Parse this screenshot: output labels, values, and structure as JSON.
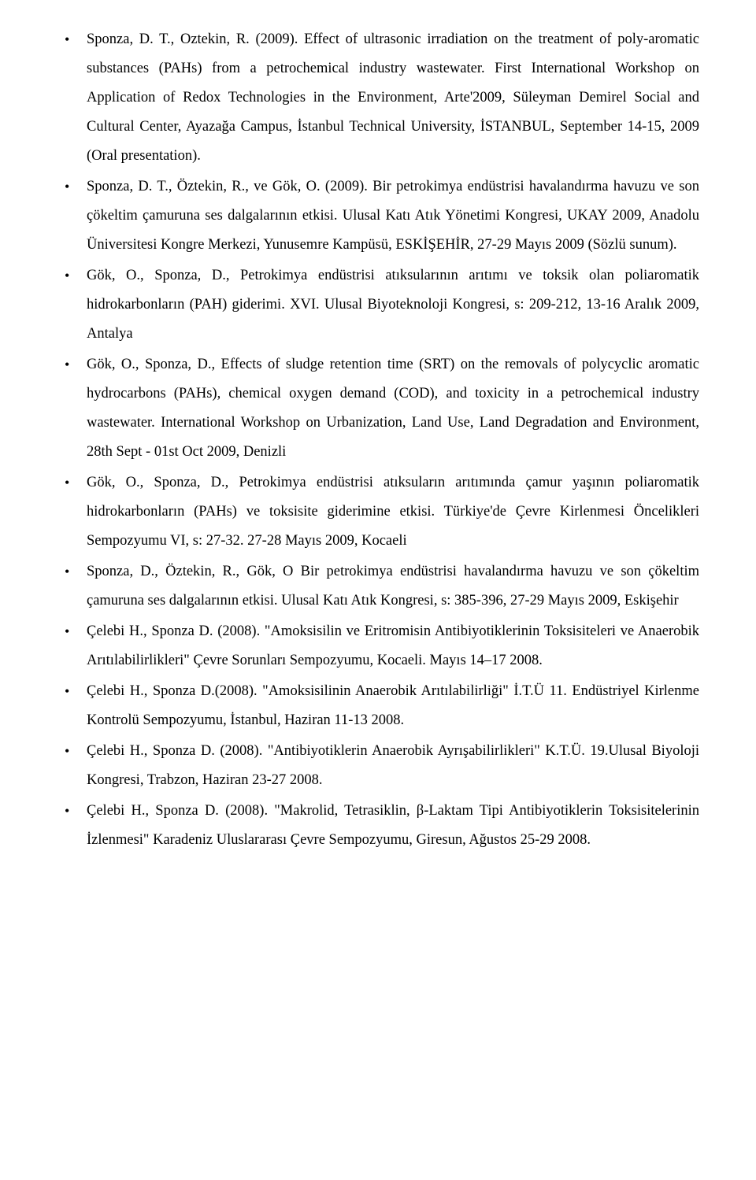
{
  "references": [
    "Sponza, D. T., Oztekin, R. (2009). Effect of ultrasonic irradiation on the treatment of poly-aromatic substances (PAHs) from a petrochemical industry wastewater. First International Workshop on Application of Redox Technologies in the Environment, Arte'2009, Süleyman Demirel Social and Cultural Center, Ayazağa Campus, İstanbul Technical University, İSTANBUL, September 14-15, 2009 (Oral presentation).",
    "Sponza, D. T., Öztekin, R., ve Gök, O. (2009). Bir petrokimya endüstrisi havalandırma havuzu ve son çökeltim çamuruna ses dalgalarının etkisi. Ulusal Katı Atık Yönetimi Kongresi, UKAY 2009, Anadolu Üniversitesi Kongre Merkezi, Yunusemre Kampüsü, ESKİŞEHİR, 27-29 Mayıs 2009 (Sözlü sunum).",
    "Gök, O., Sponza, D.,  Petrokimya endüstrisi atıksularının arıtımı ve toksik olan poliaromatik hidrokarbonların (PAH) giderimi. XVI. Ulusal Biyoteknoloji Kongresi, s: 209-212,  13-16 Aralık 2009, Antalya",
    "Gök, O.,  Sponza, D., Effects of sludge retention time (SRT) on the removals of polycyclic aromatic hydrocarbons (PAHs), chemical oxygen demand (COD), and toxicity in a petrochemical industry wastewater. International Workshop on Urbanization, Land Use, Land Degradation and Environment, 28th Sept - 01st Oct 2009, Denizli",
    "Gök, O., Sponza, D.,  Petrokimya endüstrisi atıksuların arıtımında çamur yaşının poliaromatik hidrokarbonların (PAHs) ve toksisite giderimine etkisi. Türkiye'de Çevre Kirlenmesi Öncelikleri Sempozyumu VI, s: 27-32. 27-28 Mayıs 2009, Kocaeli",
    "Sponza, D., Öztekin, R., Gök, O Bir petrokimya endüstrisi havalandırma havuzu ve son çökeltim çamuruna ses dalgalarının etkisi. Ulusal Katı Atık Kongresi, s: 385-396, 27-29 Mayıs 2009, Eskişehir",
    "Çelebi H., Sponza D. (2008). \"Amoksisilin ve Eritromisin Antibiyotiklerinin Toksisiteleri ve Anaerobik Arıtılabilirlikleri\" Çevre Sorunları Sempozyumu, Kocaeli. Mayıs 14–17 2008.",
    "Çelebi H., Sponza D.(2008). \"Amoksisilinin Anaerobik Arıtılabilirliği\" İ.T.Ü 11. Endüstriyel Kirlenme Kontrolü Sempozyumu, İstanbul, Haziran 11-13 2008.",
    "Çelebi H., Sponza D. (2008). \"Antibiyotiklerin Anaerobik Ayrışabilirlikleri\" K.T.Ü. 19.Ulusal Biyoloji Kongresi, Trabzon,  Haziran 23-27 2008.",
    "Çelebi H., Sponza D. (2008). \"Makrolid, Tetrasiklin, β-Laktam Tipi Antibiyotiklerin Toksisitelerinin İzlenmesi\" Karadeniz Uluslararası Çevre Sempozyumu, Giresun, Ağustos 25-29 2008."
  ]
}
